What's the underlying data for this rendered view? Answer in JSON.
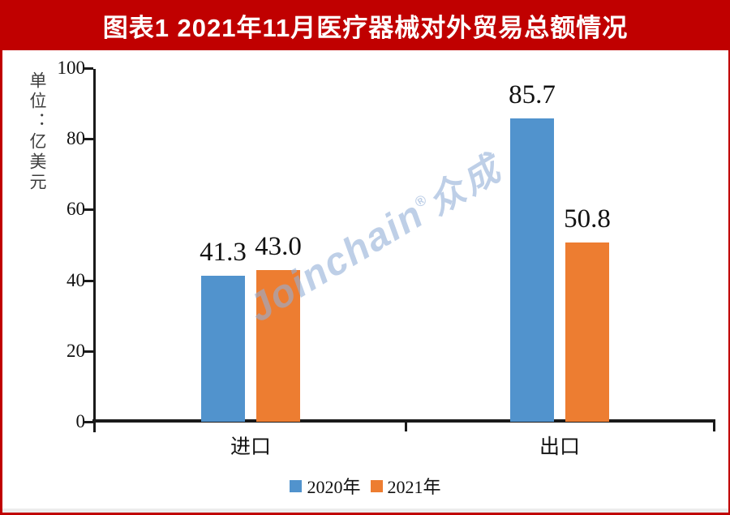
{
  "banner": {
    "title": "图表1  2021年11月医疗器械对外贸易总额情况",
    "bg_color": "#c00000",
    "text_color": "#ffffff"
  },
  "unit_label": "单位：亿美元",
  "watermark": {
    "text": "Joinchain",
    "reg": "®",
    "suffix": "众成",
    "color": "#94b0d8"
  },
  "chart_data": {
    "type": "bar",
    "title": "图表1  2021年11月医疗器械对外贸易总额情况",
    "unit": "亿美元",
    "categories": [
      "进口",
      "出口"
    ],
    "series": [
      {
        "name": "2020年",
        "color": "#5193cd",
        "values": [
          41.3,
          85.7
        ],
        "labels": [
          "41.3",
          "85.7"
        ]
      },
      {
        "name": "2021年",
        "color": "#ed7d31",
        "values": [
          43.0,
          50.8
        ],
        "labels": [
          "43.0",
          "50.8"
        ]
      }
    ],
    "ylabel": "单位：亿美元",
    "ylim": [
      0,
      100
    ],
    "yticks": [
      0,
      20,
      40,
      60,
      80,
      100
    ],
    "grid": false,
    "legend_position": "bottom"
  }
}
